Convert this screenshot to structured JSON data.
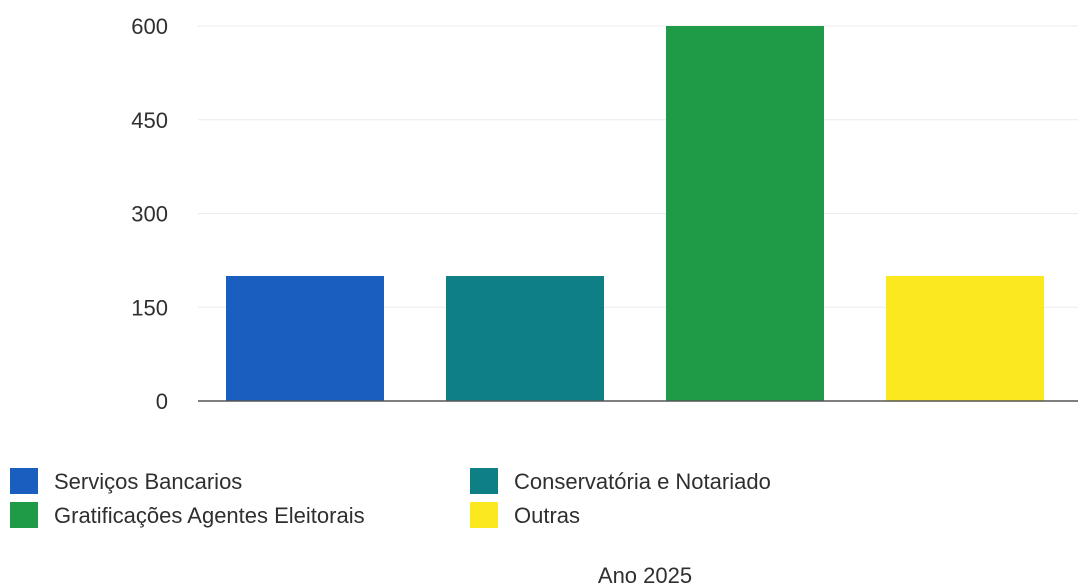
{
  "chart_data": {
    "type": "bar",
    "categories": [
      "Serviços Bancarios",
      "Conservatória e Notariado",
      "Gratificações Agentes Eleitorais",
      "Outras"
    ],
    "values": [
      200,
      200,
      600,
      200
    ],
    "colors": [
      "#1a5fc0",
      "#0f7f86",
      "#1f9a47",
      "#fbe81f"
    ],
    "yticks": [
      "0",
      "150",
      "300",
      "450",
      "600"
    ],
    "ylim": [
      0,
      600
    ],
    "grid": true,
    "legend_placement": "bottom-left",
    "xlabel": "Ano 2025",
    "ylabel": "",
    "title": ""
  }
}
